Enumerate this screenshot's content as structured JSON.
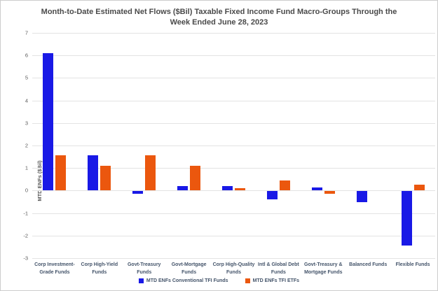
{
  "title": {
    "line1": "Month-to-Date Estimated Net Flows ($Bil) Taxable Fixed Income Fund Macro-Groups Through the",
    "line2": "Week Ended June 28, 2023"
  },
  "colors": {
    "conventional_blue": "#1919E6",
    "etf_orange": "#EB570E",
    "gridline": "#E3E3E3",
    "axis_text": "#595959",
    "category_text": "#44546A",
    "title_text": "#4A4A4A"
  },
  "chart_data": {
    "type": "bar",
    "title": "Month-to-Date Estimated Net Flows ($Bil) Taxable Fixed Income Fund Macro-Groups Through the Week Ended June 28, 2023",
    "xlabel": "",
    "ylabel": "MTD ENFs ($Bil)",
    "ylim": [
      -3,
      7
    ],
    "ytick_step": 1,
    "grid": true,
    "legend_position": "bottom",
    "categories": [
      "Corp Investment-Grade Funds",
      "Corp High-Yield Funds",
      "Govt-Treasury Funds",
      "Govt-Mortgage Funds",
      "Corp High-Quality Funds",
      "Intl & Global Debt Funds",
      "Govt-Treasury & Mortgage Funds",
      "Balanced Funds",
      "Flexible Funds"
    ],
    "series": [
      {
        "name": "MTD ENFs Conventional TFI Funds",
        "color": "#1919E6",
        "values": [
          6.1,
          1.55,
          -0.1,
          0.2,
          0.2,
          -0.35,
          0.15,
          -0.5,
          -2.4
        ]
      },
      {
        "name": "MTD ENFs TFI ETFs",
        "color": "#EB570E",
        "values": [
          1.55,
          1.1,
          1.55,
          1.1,
          0.1,
          0.45,
          -0.1,
          0,
          0.25
        ]
      }
    ]
  }
}
